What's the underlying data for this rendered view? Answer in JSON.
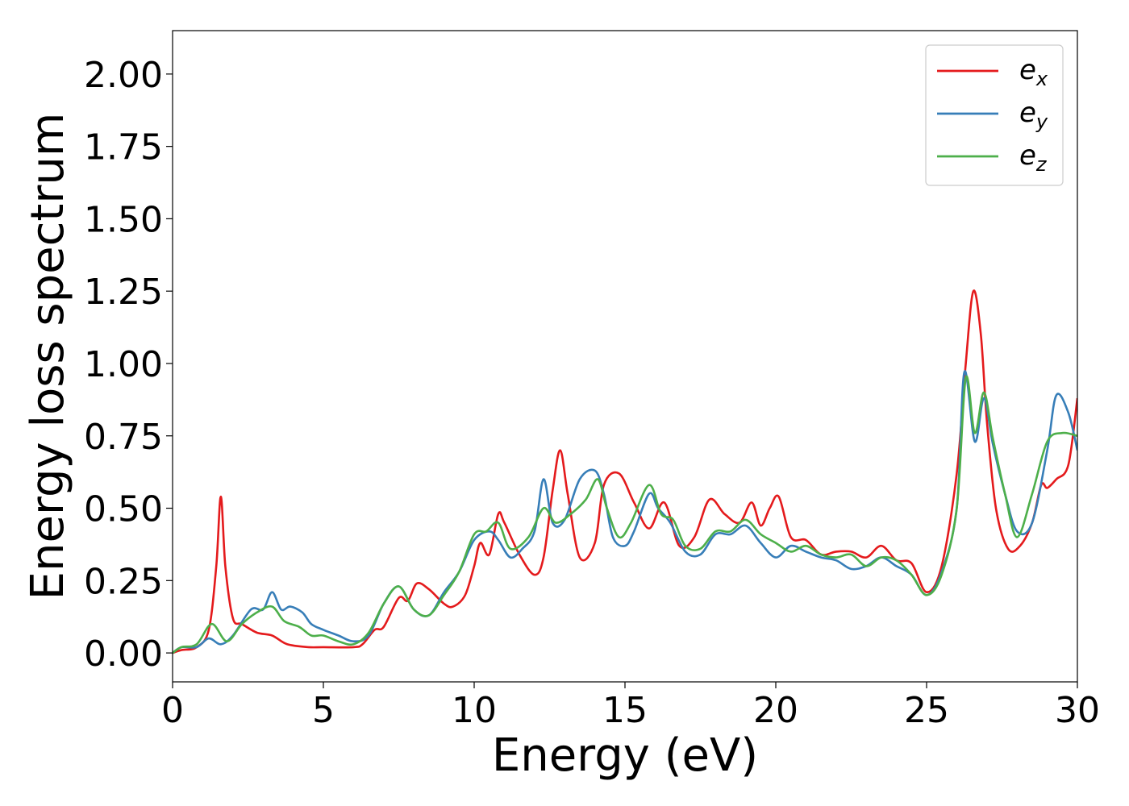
{
  "chart_data": {
    "type": "line",
    "xlabel": "Energy (eV)",
    "ylabel": "Energy loss spectrum",
    "xlim": [
      0,
      30
    ],
    "ylim": [
      -0.1,
      2.15
    ],
    "xticks": [
      0,
      5,
      10,
      15,
      20,
      25,
      30
    ],
    "xtick_labels": [
      "0",
      "5",
      "10",
      "15",
      "20",
      "25",
      "30"
    ],
    "yticks": [
      0,
      0.25,
      0.5,
      0.75,
      1.0,
      1.25,
      1.5,
      1.75,
      2.0
    ],
    "ytick_labels": [
      "0.00",
      "0.25",
      "0.50",
      "0.75",
      "1.00",
      "1.25",
      "1.50",
      "1.75",
      "2.00"
    ],
    "grid": false,
    "legend_position": "top-right",
    "series": [
      {
        "name": "e_x",
        "label_base": "e",
        "label_sub": "x",
        "color": "#e41a1c",
        "x": [
          0,
          0.3,
          0.8,
          1.2,
          1.45,
          1.6,
          1.75,
          2.0,
          2.3,
          2.8,
          3.3,
          3.8,
          4.5,
          5,
          6,
          6.3,
          6.7,
          7,
          7.5,
          7.8,
          8.1,
          8.5,
          9,
          9.3,
          9.7,
          10,
          10.2,
          10.5,
          10.8,
          11,
          11.5,
          12,
          12.3,
          12.6,
          12.85,
          13.1,
          13.5,
          14,
          14.3,
          14.8,
          15.3,
          15.8,
          16.3,
          16.8,
          17.3,
          17.8,
          18.3,
          18.8,
          19.2,
          19.5,
          19.8,
          20.1,
          20.5,
          21,
          21.5,
          22,
          22.5,
          23,
          23.5,
          24,
          24.5,
          25,
          25.5,
          26,
          26.3,
          26.55,
          26.8,
          27,
          27.3,
          27.7,
          28.1,
          28.5,
          28.8,
          29,
          29.3,
          29.7,
          30
        ],
        "y": [
          0,
          0.01,
          0.02,
          0.08,
          0.3,
          0.54,
          0.3,
          0.12,
          0.1,
          0.07,
          0.06,
          0.03,
          0.02,
          0.02,
          0.02,
          0.03,
          0.08,
          0.09,
          0.19,
          0.18,
          0.24,
          0.22,
          0.17,
          0.16,
          0.2,
          0.3,
          0.38,
          0.34,
          0.48,
          0.45,
          0.34,
          0.27,
          0.33,
          0.56,
          0.7,
          0.55,
          0.33,
          0.38,
          0.58,
          0.62,
          0.52,
          0.43,
          0.52,
          0.37,
          0.4,
          0.53,
          0.48,
          0.45,
          0.52,
          0.44,
          0.5,
          0.54,
          0.4,
          0.39,
          0.34,
          0.35,
          0.35,
          0.33,
          0.37,
          0.32,
          0.31,
          0.21,
          0.3,
          0.62,
          1.0,
          1.25,
          1.1,
          0.8,
          0.5,
          0.36,
          0.37,
          0.45,
          0.58,
          0.57,
          0.6,
          0.65,
          0.88
        ]
      },
      {
        "name": "e_y",
        "label_base": "e",
        "label_sub": "y",
        "color": "#377eb8",
        "x": [
          0,
          0.3,
          0.8,
          1.2,
          1.6,
          2.0,
          2.6,
          3.0,
          3.3,
          3.6,
          3.9,
          4.3,
          4.6,
          5,
          5.5,
          6,
          6.5,
          7,
          7.5,
          8,
          8.5,
          9,
          9.5,
          10,
          10.5,
          10.8,
          11.2,
          11.6,
          12,
          12.3,
          12.6,
          13,
          13.5,
          14,
          14.3,
          14.6,
          15,
          15.3,
          15.8,
          16.1,
          16.5,
          17,
          17.5,
          18,
          18.5,
          19,
          19.5,
          20,
          20.5,
          21,
          21.5,
          22,
          22.5,
          23,
          23.5,
          24,
          24.5,
          25,
          25.5,
          26,
          26.25,
          26.6,
          26.9,
          27.2,
          27.6,
          28,
          28.5,
          29,
          29.3,
          29.7,
          30
        ],
        "y": [
          0,
          0.02,
          0.02,
          0.05,
          0.03,
          0.06,
          0.15,
          0.15,
          0.21,
          0.15,
          0.16,
          0.14,
          0.1,
          0.08,
          0.06,
          0.04,
          0.06,
          0.17,
          0.23,
          0.15,
          0.13,
          0.21,
          0.28,
          0.39,
          0.42,
          0.39,
          0.33,
          0.36,
          0.42,
          0.6,
          0.45,
          0.46,
          0.6,
          0.63,
          0.55,
          0.4,
          0.37,
          0.42,
          0.55,
          0.5,
          0.45,
          0.35,
          0.34,
          0.41,
          0.41,
          0.44,
          0.38,
          0.33,
          0.37,
          0.35,
          0.33,
          0.32,
          0.29,
          0.3,
          0.33,
          0.3,
          0.27,
          0.2,
          0.28,
          0.5,
          0.97,
          0.73,
          0.88,
          0.72,
          0.55,
          0.42,
          0.45,
          0.7,
          0.89,
          0.83,
          0.7
        ]
      },
      {
        "name": "e_z",
        "label_base": "e",
        "label_sub": "z",
        "color": "#4daf4a",
        "x": [
          0,
          0.3,
          0.8,
          1.3,
          1.8,
          2.3,
          2.8,
          3.3,
          3.7,
          4.2,
          4.6,
          5,
          5.5,
          6,
          6.5,
          7,
          7.5,
          8,
          8.5,
          9,
          9.5,
          10,
          10.4,
          10.8,
          11.2,
          11.8,
          12.3,
          12.7,
          13.2,
          13.7,
          14.1,
          14.4,
          14.8,
          15.2,
          15.8,
          16.2,
          16.6,
          17,
          17.5,
          18,
          18.5,
          19,
          19.5,
          20,
          20.5,
          21,
          21.5,
          22,
          22.5,
          23,
          23.5,
          24,
          24.5,
          25,
          25.5,
          26,
          26.3,
          26.6,
          26.9,
          27.2,
          27.6,
          28,
          28.5,
          29,
          29.5,
          30
        ],
        "y": [
          0,
          0.02,
          0.03,
          0.1,
          0.04,
          0.1,
          0.14,
          0.16,
          0.11,
          0.09,
          0.06,
          0.06,
          0.04,
          0.03,
          0.07,
          0.17,
          0.23,
          0.15,
          0.13,
          0.2,
          0.28,
          0.41,
          0.42,
          0.45,
          0.36,
          0.4,
          0.5,
          0.45,
          0.48,
          0.53,
          0.6,
          0.5,
          0.4,
          0.45,
          0.58,
          0.48,
          0.46,
          0.37,
          0.36,
          0.42,
          0.42,
          0.46,
          0.41,
          0.38,
          0.35,
          0.37,
          0.34,
          0.33,
          0.34,
          0.3,
          0.33,
          0.32,
          0.27,
          0.2,
          0.27,
          0.5,
          0.95,
          0.76,
          0.9,
          0.74,
          0.55,
          0.4,
          0.55,
          0.73,
          0.76,
          0.75
        ]
      }
    ]
  }
}
